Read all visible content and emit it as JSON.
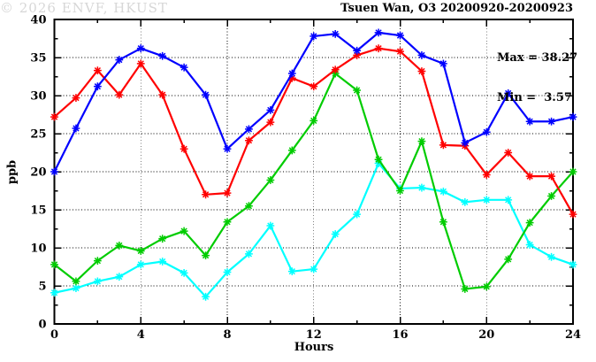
{
  "chart_data": {
    "type": "line",
    "title": "Tsuen Wan, O3 20200920-20200923",
    "xlabel": "Hours",
    "ylabel": "ppb",
    "watermark": "© 2026 ENVF, HKUST",
    "legend": {
      "position": "top-right-inside",
      "max_label": "Max = 38.27",
      "min_label": "Min =  3.57"
    },
    "max_value": 38.27,
    "min_value": 3.57,
    "xlim": [
      0,
      24
    ],
    "ylim": [
      0,
      40
    ],
    "x_major_ticks": [
      0,
      4,
      8,
      12,
      16,
      20,
      24
    ],
    "x_minor_step": 2,
    "y_major_ticks": [
      0,
      5,
      10,
      15,
      20,
      25,
      30,
      35,
      40
    ],
    "y_minor_step": 2.5,
    "grid": "dotted-at-major-ticks",
    "marker": "star",
    "x": [
      0,
      1,
      2,
      3,
      4,
      5,
      6,
      7,
      8,
      9,
      10,
      11,
      12,
      13,
      14,
      15,
      16,
      17,
      18,
      19,
      20,
      21,
      22,
      23,
      24
    ],
    "series": [
      {
        "name": "series-blue",
        "color": "#0000ff",
        "values": [
          20.0,
          25.7,
          31.2,
          34.7,
          36.2,
          35.2,
          33.7,
          30.1,
          23.0,
          25.6,
          28.1,
          32.9,
          37.8,
          38.1,
          35.9,
          38.27,
          37.9,
          35.3,
          34.2,
          23.8,
          25.2,
          30.3,
          26.6,
          26.6,
          27.2
        ]
      },
      {
        "name": "series-red",
        "color": "#ff0000",
        "values": [
          27.2,
          29.7,
          33.3,
          30.1,
          34.2,
          30.1,
          23.0,
          17.0,
          17.2,
          24.1,
          26.5,
          32.3,
          31.2,
          33.4,
          35.3,
          36.2,
          35.8,
          33.2,
          23.5,
          23.4,
          19.6,
          22.5,
          19.4,
          19.4,
          14.4
        ]
      },
      {
        "name": "series-green",
        "color": "#00cc00",
        "values": [
          7.8,
          5.6,
          8.3,
          10.3,
          9.6,
          11.2,
          12.2,
          9.0,
          13.4,
          15.5,
          18.9,
          22.8,
          26.7,
          32.9,
          30.7,
          21.6,
          17.5,
          24.0,
          13.4,
          4.6,
          4.9,
          8.5,
          13.3,
          16.8,
          20.0
        ]
      },
      {
        "name": "series-cyan",
        "color": "#00ffff",
        "values": [
          4.1,
          4.7,
          5.6,
          6.2,
          7.8,
          8.2,
          6.7,
          3.57,
          6.8,
          9.2,
          12.9,
          6.9,
          7.2,
          11.8,
          14.4,
          21.1,
          17.8,
          17.9,
          17.4,
          16.0,
          16.3,
          16.3,
          10.4,
          8.8,
          7.8
        ]
      }
    ]
  }
}
